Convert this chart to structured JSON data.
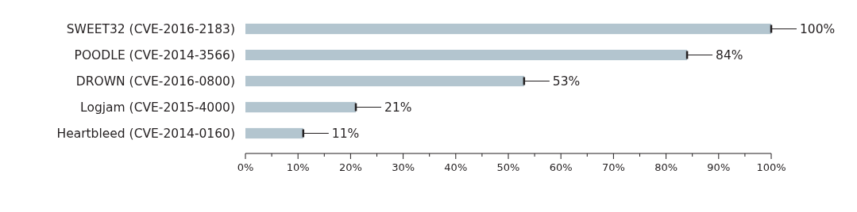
{
  "chart_data": {
    "type": "bar",
    "orientation": "horizontal",
    "categories": [
      "SWEET32 (CVE-2016-2183)",
      "POODLE (CVE-2014-3566)",
      "DROWN (CVE-2016-0800)",
      "Logjam (CVE-2015-4000)",
      "Heartbleed (CVE-2014-0160)"
    ],
    "values": [
      100,
      84,
      53,
      21,
      11
    ],
    "value_labels": [
      "100%",
      "84%",
      "53%",
      "21%",
      "11%"
    ],
    "color": "#b3c5cf",
    "xlim": [
      0,
      100
    ],
    "xticks": [
      {
        "value": 0,
        "label": "0%"
      },
      {
        "value": 5,
        "label": null
      },
      {
        "value": 10,
        "label": "10%"
      },
      {
        "value": 15,
        "label": null
      },
      {
        "value": 20,
        "label": "20%"
      },
      {
        "value": 25,
        "label": null
      },
      {
        "value": 30,
        "label": "30%"
      },
      {
        "value": 35,
        "label": null
      },
      {
        "value": 40,
        "label": "40%"
      },
      {
        "value": 45,
        "label": null
      },
      {
        "value": 50,
        "label": "50%"
      },
      {
        "value": 55,
        "label": null
      },
      {
        "value": 60,
        "label": "60%"
      },
      {
        "value": 65,
        "label": null
      },
      {
        "value": 70,
        "label": "70%"
      },
      {
        "value": 75,
        "label": null
      },
      {
        "value": 80,
        "label": "80%"
      },
      {
        "value": 85,
        "label": null
      },
      {
        "value": 90,
        "label": "90%"
      },
      {
        "value": 95,
        "label": null
      },
      {
        "value": 100,
        "label": "100%"
      }
    ],
    "grid": false
  }
}
